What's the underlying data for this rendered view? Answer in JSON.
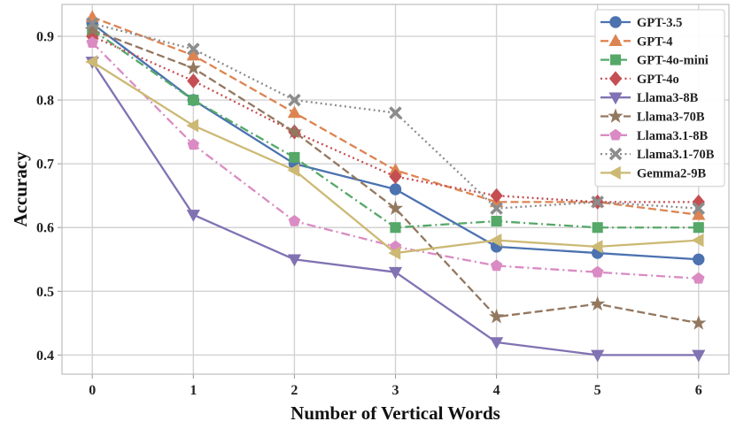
{
  "chart_data": {
    "type": "line",
    "xlabel": "Number of Vertical Words",
    "ylabel": "Accuracy",
    "x": [
      0,
      1,
      2,
      3,
      4,
      5,
      6
    ],
    "xticks": [
      "0",
      "1",
      "2",
      "3",
      "4",
      "5",
      "6"
    ],
    "xlim": [
      -0.3,
      6.3
    ],
    "ylim": [
      0.37,
      0.95
    ],
    "yticks": [
      "0.4",
      "0.5",
      "0.6",
      "0.7",
      "0.8",
      "0.9"
    ],
    "grid": true,
    "legend_position": "top-right",
    "series": [
      {
        "name": "GPT-3.5",
        "color": "#4c72b0",
        "dash": "solid",
        "marker": "circle",
        "values": [
          0.92,
          0.8,
          0.7,
          0.66,
          0.57,
          0.56,
          0.55
        ]
      },
      {
        "name": "GPT-4",
        "color": "#dd8452",
        "dash": "dashed",
        "marker": "triangle-up",
        "values": [
          0.93,
          0.87,
          0.78,
          0.69,
          0.64,
          0.64,
          0.62
        ]
      },
      {
        "name": "GPT-4o-mini",
        "color": "#55a868",
        "dash": "dashdot",
        "marker": "square",
        "values": [
          0.91,
          0.8,
          0.71,
          0.6,
          0.61,
          0.6,
          0.6
        ]
      },
      {
        "name": "GPT-4o",
        "color": "#c44e52",
        "dash": "dotted",
        "marker": "diamond",
        "values": [
          0.9,
          0.83,
          0.75,
          0.68,
          0.65,
          0.64,
          0.64
        ]
      },
      {
        "name": "Llama3-8B",
        "color": "#8172b3",
        "dash": "solid",
        "marker": "triangle-down",
        "values": [
          0.86,
          0.62,
          0.55,
          0.53,
          0.42,
          0.4,
          0.4
        ]
      },
      {
        "name": "Llama3-70B",
        "color": "#937860",
        "dash": "dashed",
        "marker": "star",
        "values": [
          0.91,
          0.85,
          0.75,
          0.63,
          0.46,
          0.48,
          0.45
        ]
      },
      {
        "name": "Llama3.1-8B",
        "color": "#da8bc3",
        "dash": "dashdot",
        "marker": "pentagon",
        "values": [
          0.89,
          0.73,
          0.61,
          0.57,
          0.54,
          0.53,
          0.52
        ]
      },
      {
        "name": "Llama3.1-70B",
        "color": "#8c8c8c",
        "dash": "dotted",
        "marker": "x",
        "values": [
          0.92,
          0.88,
          0.8,
          0.78,
          0.63,
          0.64,
          0.63
        ]
      },
      {
        "name": "Gemma2-9B",
        "color": "#ccb974",
        "dash": "solid",
        "marker": "triangle-left",
        "values": [
          0.86,
          0.76,
          0.69,
          0.56,
          0.58,
          0.57,
          0.58
        ]
      }
    ]
  }
}
